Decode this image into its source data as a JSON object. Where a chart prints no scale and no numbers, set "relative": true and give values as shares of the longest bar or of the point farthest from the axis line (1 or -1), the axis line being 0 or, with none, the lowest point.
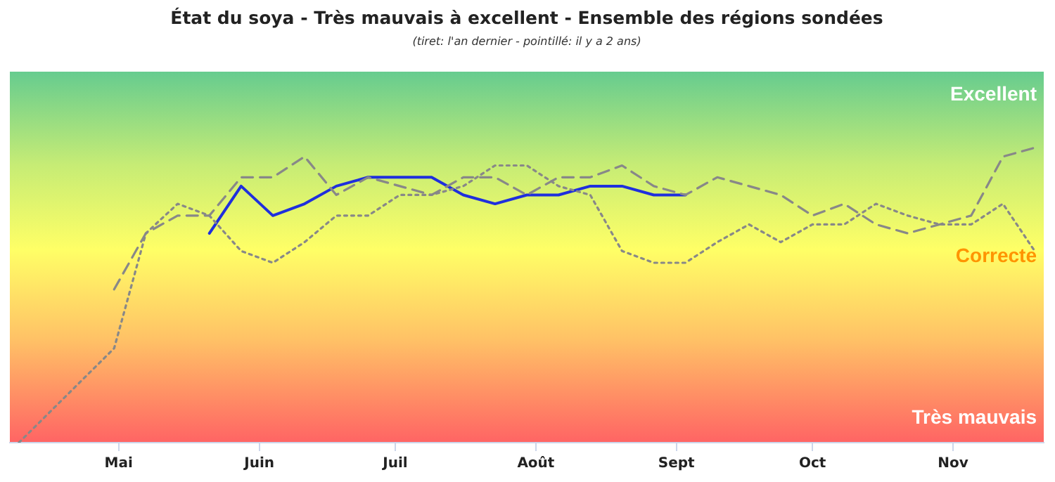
{
  "chart_data": {
    "type": "line",
    "title": "État du soya - Très mauvais à excellent - Ensemble des régions sondées",
    "subtitle": "(tiret: l'an dernier - pointillé: il y a 2 ans)",
    "annotations": [
      "Excellent",
      "Correcte",
      "Très mauvais"
    ],
    "relative": true,
    "xlim": [
      "--04-07",
      "--11-21"
    ],
    "xticks": [
      {
        "value": "--05-01",
        "label": "Mai"
      },
      {
        "value": "--06-01",
        "label": "Juin"
      },
      {
        "value": "--07-01",
        "label": "Juil"
      },
      {
        "value": "--08-01",
        "label": "Août"
      },
      {
        "value": "--09-01",
        "label": "Sept"
      },
      {
        "value": "--10-01",
        "label": "Oct"
      },
      {
        "value": "--11-01",
        "label": "Nov"
      }
    ],
    "legend": false,
    "marker": "none",
    "series": [
      {
        "color": "#888888",
        "line_style": "dotted",
        "x": [
          "--04-09",
          "--04-30",
          "--05-07",
          "--05-14",
          "--05-21",
          "--05-28",
          "--06-04",
          "--06-11",
          "--06-18",
          "--06-25",
          "--07-02",
          "--07-09",
          "--07-16",
          "--07-23",
          "--07-30",
          "--08-06",
          "--08-13",
          "--08-20",
          "--08-27",
          "--09-03",
          "--09-10",
          "--09-17",
          "--09-24",
          "--10-01",
          "--10-08",
          "--10-15",
          "--10-22",
          "--10-29",
          "--11-05",
          "--11-12",
          "--11-19"
        ],
        "values": [
          0,
          0.32,
          0.71,
          0.81,
          0.77,
          0.65,
          0.61,
          0.68,
          0.77,
          0.77,
          0.84,
          0.84,
          0.87,
          0.94,
          0.94,
          0.87,
          0.84,
          0.65,
          0.61,
          0.61,
          0.68,
          0.74,
          0.68,
          0.74,
          0.74,
          0.81,
          0.77,
          0.74,
          0.74,
          0.81,
          0.65
        ]
      },
      {
        "color": "#888888",
        "line_style": "dashed",
        "x": [
          "--04-30",
          "--05-07",
          "--05-14",
          "--05-21",
          "--05-28",
          "--06-04",
          "--06-11",
          "--06-18",
          "--06-25",
          "--07-02",
          "--07-09",
          "--07-16",
          "--07-23",
          "--07-30",
          "--08-06",
          "--08-13",
          "--08-20",
          "--08-27",
          "--09-03",
          "--09-10",
          "--09-17",
          "--09-24",
          "--10-01",
          "--10-08",
          "--10-15",
          "--10-22",
          "--10-29",
          "--11-05",
          "--11-12",
          "--11-19"
        ],
        "values": [
          0.52,
          0.71,
          0.77,
          0.77,
          0.9,
          0.9,
          0.97,
          0.84,
          0.9,
          0.87,
          0.84,
          0.9,
          0.9,
          0.84,
          0.9,
          0.9,
          0.94,
          0.87,
          0.84,
          0.9,
          0.87,
          0.84,
          0.77,
          0.81,
          0.74,
          0.71,
          0.74,
          0.77,
          0.97,
          1
        ]
      },
      {
        "color": "#1f2fdd",
        "line_style": "solid",
        "x": [
          "--05-21",
          "--05-28",
          "--06-04",
          "--06-11",
          "--06-18",
          "--06-25",
          "--07-02",
          "--07-09",
          "--07-16",
          "--07-23",
          "--07-30",
          "--08-06",
          "--08-13",
          "--08-20",
          "--08-27",
          "--09-03"
        ],
        "values": [
          0.71,
          0.87,
          0.77,
          0.81,
          0.87,
          0.9,
          0.9,
          0.9,
          0.84,
          0.81,
          0.84,
          0.84,
          0.87,
          0.87,
          0.84,
          0.84
        ]
      }
    ]
  }
}
